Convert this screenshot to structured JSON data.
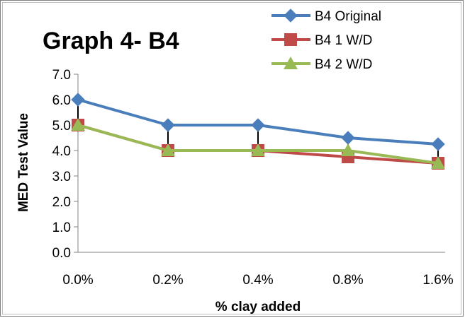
{
  "chart_data": {
    "type": "line",
    "title": "Graph 4- B4",
    "xlabel": "% clay added",
    "ylabel": "MED Test Value",
    "categories": [
      "0.0%",
      "0.2%",
      "0.4%",
      "0.8%",
      "1.6%"
    ],
    "ylim": [
      0,
      7
    ],
    "yticks": [
      "0.0",
      "1.0",
      "2.0",
      "3.0",
      "4.0",
      "5.0",
      "6.0",
      "7.0"
    ],
    "grid": false,
    "legend_position": "top-right",
    "series": [
      {
        "name": "B4 Original",
        "values": [
          6.0,
          5.0,
          5.0,
          4.5,
          4.25
        ],
        "color": "#4a7ebb",
        "marker": "diamond"
      },
      {
        "name": "B4 1 W/D",
        "values": [
          5.0,
          4.0,
          4.0,
          3.75,
          3.5
        ],
        "color": "#be4b48",
        "marker": "square"
      },
      {
        "name": "B4 2 W/D",
        "values": [
          5.0,
          4.0,
          4.0,
          4.0,
          3.5
        ],
        "color": "#98b954",
        "marker": "triangle"
      }
    ],
    "error_bar_color": "#000000"
  }
}
